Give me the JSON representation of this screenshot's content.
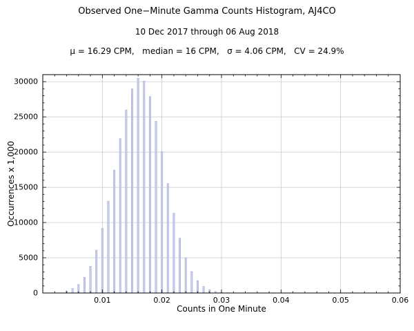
{
  "title": "Observed One−Minute Gamma Counts Histogram, AJ4CO",
  "subtitle": "10 Dec 2017 through 06 Aug 2018",
  "stats_line": "μ = 16.29 CPM,   median = 16 CPM,   σ = 4.06 CPM,   CV = 24.9%",
  "chart_data": {
    "type": "bar",
    "title": "Observed One−Minute Gamma Counts Histogram, AJ4CO",
    "subtitle": "10 Dec 2017 through 06 Aug 2018",
    "stats": {
      "mu_cpm": 16.29,
      "median_cpm": 16,
      "sigma_cpm": 4.06,
      "cv_percent": 24.9
    },
    "xlabel": "Counts in One Minute",
    "ylabel": "Occurrences  x 1,000",
    "xlim": [
      0,
      0.06
    ],
    "ylim": [
      0,
      31000
    ],
    "grid": true,
    "legend": "none",
    "bar_color": "#c9cde9",
    "bar_edge_color": "#9ba3d0",
    "grid_color": "#c4c4c4",
    "frame_color": "#000000",
    "x_ticks": [
      0.01,
      0.02,
      0.03,
      0.04,
      0.05,
      0.06
    ],
    "x_tick_labels": [
      "0.01",
      "0.02",
      "0.03",
      "0.04",
      "0.05",
      "0.06"
    ],
    "y_ticks": [
      0,
      5000,
      10000,
      15000,
      20000,
      25000,
      30000
    ],
    "y_tick_labels": [
      "0",
      "5000",
      "10000",
      "15000",
      "20000",
      "25000",
      "30000"
    ],
    "x": [
      0.004,
      0.005,
      0.006,
      0.007,
      0.008,
      0.009,
      0.01,
      0.011,
      0.012,
      0.013,
      0.014,
      0.015,
      0.016,
      0.017,
      0.018,
      0.019,
      0.02,
      0.021,
      0.022,
      0.023,
      0.024,
      0.025,
      0.026,
      0.027,
      0.028,
      0.029,
      0.03,
      0.031
    ],
    "values": [
      300,
      640,
      1230,
      2230,
      3790,
      6080,
      9180,
      13040,
      17440,
      21940,
      25990,
      28970,
      30500,
      30100,
      27880,
      24380,
      20070,
      15540,
      11330,
      7780,
      5020,
      3050,
      1750,
      940,
      480,
      230,
      100,
      40
    ]
  }
}
